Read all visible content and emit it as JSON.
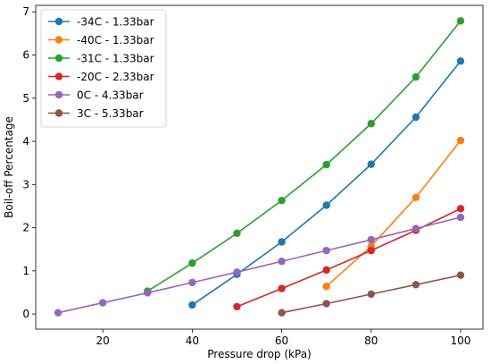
{
  "chart_data": {
    "type": "line",
    "title": "",
    "xlabel": "Pressure drop (kPa)",
    "ylabel": "Boil-off Percentage",
    "xlim": [
      5,
      105
    ],
    "ylim": [
      -0.35,
      7.15
    ],
    "xticks": [
      20,
      40,
      60,
      80,
      100
    ],
    "yticks": [
      0,
      1,
      2,
      3,
      4,
      5,
      6,
      7
    ],
    "grid": false,
    "legend": "top-left",
    "series": [
      {
        "name": "-34C - 1.33bar",
        "color": "#1f77b4",
        "x": [
          40,
          50,
          60,
          70,
          80,
          90,
          100
        ],
        "y": [
          0.21,
          0.92,
          1.67,
          2.52,
          3.47,
          4.56,
          5.86
        ]
      },
      {
        "name": "-40C - 1.33bar",
        "color": "#ff7f0e",
        "x": [
          70,
          80,
          90,
          100
        ],
        "y": [
          0.64,
          1.57,
          2.7,
          4.02
        ]
      },
      {
        "name": "-31C - 1.33bar",
        "color": "#2ca02c",
        "x": [
          30,
          40,
          50,
          60,
          70,
          80,
          90,
          100
        ],
        "y": [
          0.53,
          1.18,
          1.87,
          2.63,
          3.46,
          4.41,
          5.49,
          6.79
        ]
      },
      {
        "name": "-20C - 2.33bar",
        "color": "#d62728",
        "x": [
          50,
          60,
          70,
          80,
          90,
          100
        ],
        "y": [
          0.17,
          0.59,
          1.02,
          1.47,
          1.94,
          2.44
        ]
      },
      {
        "name": "0C - 4.33bar",
        "color": "#9467bd",
        "x": [
          10,
          20,
          30,
          40,
          50,
          60,
          70,
          80,
          90,
          100
        ],
        "y": [
          0.03,
          0.26,
          0.49,
          0.73,
          0.97,
          1.22,
          1.47,
          1.72,
          1.98,
          2.24
        ]
      },
      {
        "name": "3C - 5.33bar",
        "color": "#8c564b",
        "x": [
          60,
          70,
          80,
          90,
          100
        ],
        "y": [
          0.03,
          0.24,
          0.46,
          0.68,
          0.9
        ]
      }
    ]
  }
}
